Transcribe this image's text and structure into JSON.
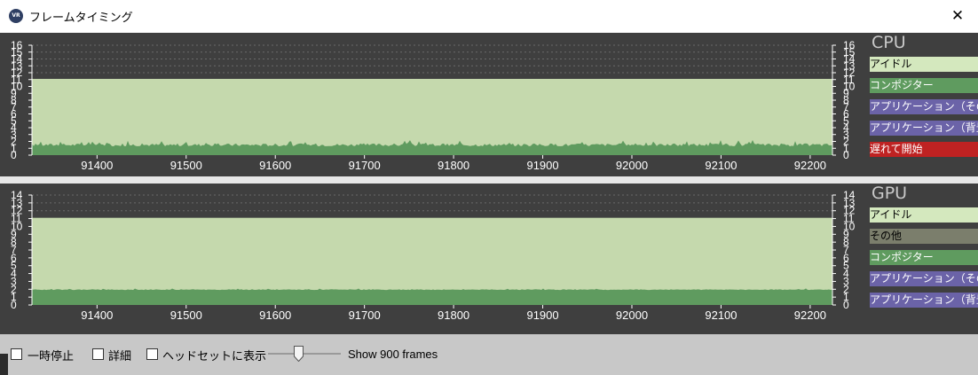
{
  "window": {
    "title": "フレームタイミング",
    "icon": "vr-icon",
    "close_label": "✕"
  },
  "cpu": {
    "title": "CPU",
    "legend": [
      {
        "label": "アイドル",
        "bg": "#d4e8be",
        "fg": "#000000"
      },
      {
        "label": "コンポジター",
        "bg": "#5f9b5f",
        "fg": "#ffffff"
      },
      {
        "label": "アプリケーション（その他",
        "bg": "#6b63a8",
        "fg": "#ffffff"
      },
      {
        "label": "アプリケーション（背景",
        "bg": "#6b63a8",
        "fg": "#ffffff"
      },
      {
        "label": "遅れて開始",
        "bg": "#bf2222",
        "fg": "#ffffff"
      }
    ],
    "chart_data": {
      "type": "area",
      "y_ticks": [
        0,
        1,
        2,
        3,
        4,
        5,
        6,
        7,
        8,
        9,
        10,
        11,
        12,
        13,
        14,
        15,
        16
      ],
      "ylim": [
        0,
        16
      ],
      "x_ticks": [
        "91400",
        "91500",
        "91600",
        "91700",
        "91800",
        "91900",
        "92000",
        "92100",
        "92200"
      ],
      "xlim": [
        91327,
        92225
      ],
      "series": [
        {
          "name": "アイドル",
          "color": "#c5d9ad",
          "value": 11.1
        },
        {
          "name": "コンポジター",
          "color": "#5f9b5f",
          "value_range": [
            0.8,
            2.2
          ]
        }
      ]
    }
  },
  "gpu": {
    "title": "GPU",
    "legend": [
      {
        "label": "アイドル",
        "bg": "#d4e8be",
        "fg": "#000000"
      },
      {
        "label": "その他",
        "bg": "#7b7e6c",
        "fg": "#000000"
      },
      {
        "label": "コンポジター",
        "bg": "#5f9b5f",
        "fg": "#ffffff"
      },
      {
        "label": "アプリケーション（その他",
        "bg": "#6b63a8",
        "fg": "#ffffff"
      },
      {
        "label": "アプリケーション（背景",
        "bg": "#6b63a8",
        "fg": "#ffffff"
      }
    ],
    "chart_data": {
      "type": "area",
      "y_ticks": [
        0,
        1,
        2,
        3,
        4,
        5,
        6,
        7,
        8,
        9,
        10,
        11,
        12,
        13,
        14
      ],
      "ylim": [
        0,
        14
      ],
      "x_ticks": [
        "91400",
        "91500",
        "91600",
        "91700",
        "91800",
        "91900",
        "92000",
        "92100",
        "92200"
      ],
      "xlim": [
        91327,
        92225
      ],
      "series": [
        {
          "name": "アイドル",
          "color": "#c5d9ad",
          "value": 11.1
        },
        {
          "name": "コンポジター",
          "color": "#5f9b5f",
          "value_range": [
            1.8,
            2.1
          ]
        }
      ]
    }
  },
  "controls": {
    "pause_label": "一時停止",
    "details_label": "詳細",
    "headset_label": "ヘッドセットに表示",
    "frames_label": "Show 900 frames",
    "frames_slider_value": 0.4
  }
}
